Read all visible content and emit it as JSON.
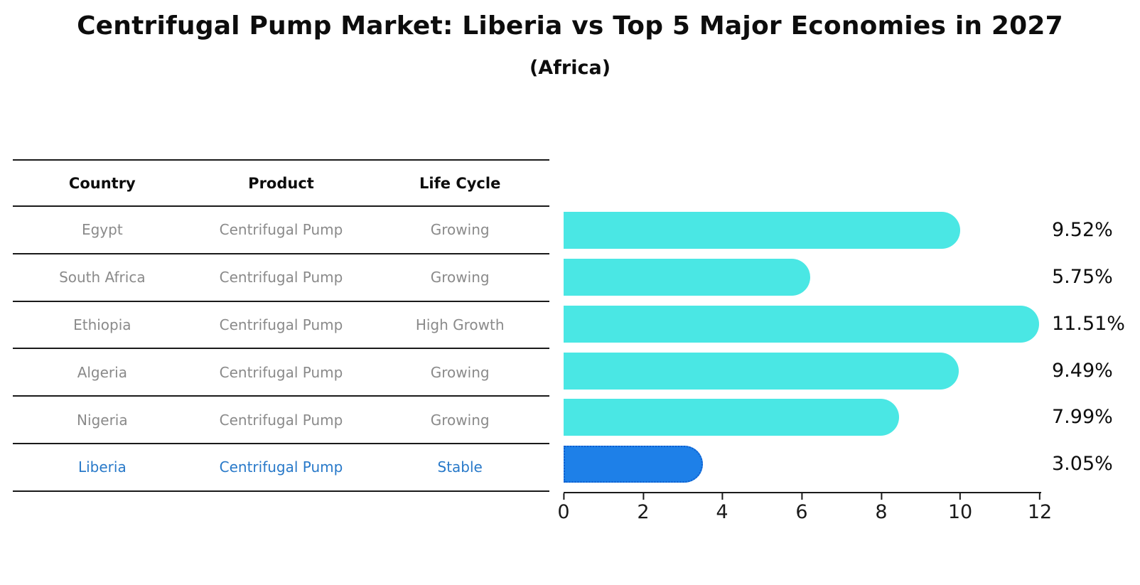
{
  "title": "Centrifugal Pump Market: Liberia vs Top 5 Major Economies in 2027",
  "subtitle": "(Africa)",
  "table": {
    "headers": [
      "Country",
      "Product",
      "Life Cycle"
    ],
    "rows": [
      {
        "country": "Egypt",
        "product": "Centrifugal Pump",
        "life_cycle": "Growing",
        "highlight": false
      },
      {
        "country": "South Africa",
        "product": "Centrifugal Pump",
        "life_cycle": "Growing",
        "highlight": false
      },
      {
        "country": "Ethiopia",
        "product": "Centrifugal Pump",
        "life_cycle": "High Growth",
        "highlight": false
      },
      {
        "country": "Algeria",
        "product": "Centrifugal Pump",
        "life_cycle": "Growing",
        "highlight": false
      },
      {
        "country": "Nigeria",
        "product": "Centrifugal Pump",
        "life_cycle": "Growing",
        "highlight": false
      },
      {
        "country": "Liberia",
        "product": "Centrifugal Pump",
        "life_cycle": "Stable",
        "highlight": true
      }
    ]
  },
  "chart_data": {
    "type": "bar",
    "orientation": "horizontal",
    "title": "Centrifugal Pump Market: Liberia vs Top 5 Major Economies in 2027",
    "subtitle": "(Africa)",
    "categories": [
      "Egypt",
      "South Africa",
      "Ethiopia",
      "Algeria",
      "Nigeria",
      "Liberia"
    ],
    "values": [
      9.52,
      5.75,
      11.51,
      9.49,
      7.99,
      3.05
    ],
    "value_labels": [
      "9.52%",
      "5.75%",
      "11.51%",
      "9.49%",
      "7.99%",
      "3.05%"
    ],
    "unit": "%",
    "xlim": [
      0,
      12
    ],
    "x_ticks": [
      0,
      2,
      4,
      6,
      8,
      10,
      12
    ],
    "grid": false,
    "legend": false,
    "highlight_index": 5,
    "colors": {
      "bar": "#4AE7E4",
      "highlight_bar": "#1E80E8",
      "highlight_border": "#0D5ECF",
      "highlight_text": "#2879C9",
      "row_text": "#8A8A8A",
      "heading_text": "#0D0D0D",
      "axis": "#1A1A1A"
    }
  }
}
